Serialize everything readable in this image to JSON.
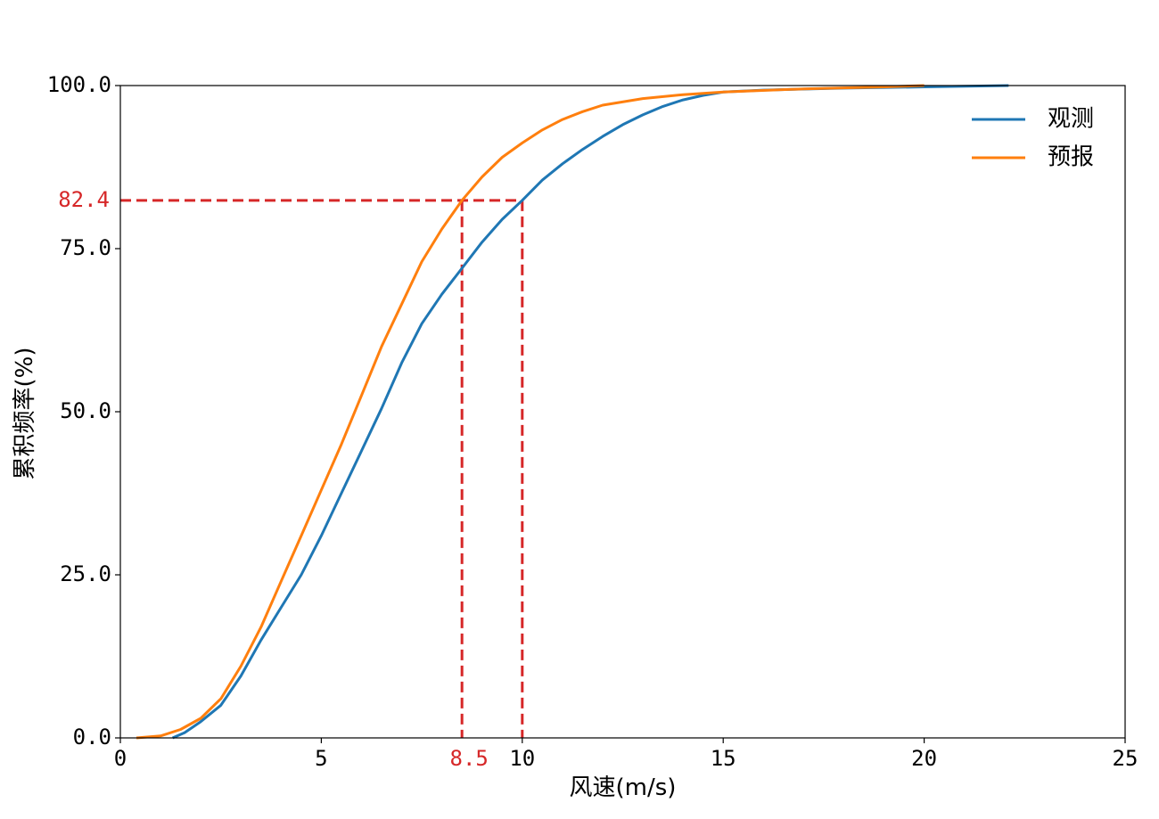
{
  "chart_data": {
    "type": "line",
    "xlabel": "风速(m/s)",
    "ylabel": "累积频率(%)",
    "xlim": [
      0,
      25
    ],
    "ylim": [
      0,
      100
    ],
    "grid": false,
    "legend_position": "top-right",
    "x_ticks": [
      "0",
      "5",
      "10",
      "15",
      "20",
      "25"
    ],
    "y_ticks": [
      "0.0",
      "25.0",
      "50.0",
      "75.0",
      "100.0"
    ],
    "series": [
      {
        "name": "观测",
        "color": "#1f77b4",
        "points": [
          [
            1.3,
            0
          ],
          [
            1.6,
            0.8
          ],
          [
            2.0,
            2.5
          ],
          [
            2.5,
            5
          ],
          [
            3.0,
            9.5
          ],
          [
            3.5,
            15
          ],
          [
            4.0,
            20
          ],
          [
            4.5,
            25
          ],
          [
            5.0,
            31
          ],
          [
            5.5,
            37.5
          ],
          [
            6.0,
            44
          ],
          [
            6.5,
            50.5
          ],
          [
            7.0,
            57.5
          ],
          [
            7.5,
            63.5
          ],
          [
            8.0,
            68
          ],
          [
            8.5,
            72
          ],
          [
            9.0,
            76
          ],
          [
            9.5,
            79.5
          ],
          [
            10.0,
            82.4
          ],
          [
            10.5,
            85.5
          ],
          [
            11.0,
            88
          ],
          [
            11.5,
            90.2
          ],
          [
            12.0,
            92.2
          ],
          [
            12.5,
            94
          ],
          [
            13.0,
            95.5
          ],
          [
            13.5,
            96.8
          ],
          [
            14.0,
            97.8
          ],
          [
            14.5,
            98.5
          ],
          [
            15.0,
            99
          ],
          [
            16.0,
            99.3
          ],
          [
            18.0,
            99.6
          ],
          [
            20.0,
            99.8
          ],
          [
            22.1,
            100
          ]
        ]
      },
      {
        "name": "预报",
        "color": "#ff7f0e",
        "points": [
          [
            0.4,
            0
          ],
          [
            1.0,
            0.3
          ],
          [
            1.5,
            1.3
          ],
          [
            2.0,
            3
          ],
          [
            2.5,
            6
          ],
          [
            3.0,
            11
          ],
          [
            3.5,
            17
          ],
          [
            4.0,
            24
          ],
          [
            4.5,
            31
          ],
          [
            5.0,
            38
          ],
          [
            5.5,
            45
          ],
          [
            6.0,
            52.5
          ],
          [
            6.5,
            60
          ],
          [
            7.0,
            66.5
          ],
          [
            7.5,
            73
          ],
          [
            8.0,
            78
          ],
          [
            8.5,
            82.4
          ],
          [
            9.0,
            86
          ],
          [
            9.5,
            89
          ],
          [
            10.0,
            91.2
          ],
          [
            10.5,
            93.2
          ],
          [
            11.0,
            94.8
          ],
          [
            11.5,
            96
          ],
          [
            12.0,
            97
          ],
          [
            13.0,
            98
          ],
          [
            14.0,
            98.6
          ],
          [
            15.0,
            99
          ],
          [
            17.0,
            99.5
          ],
          [
            19.0,
            99.8
          ],
          [
            20.0,
            100
          ]
        ]
      }
    ],
    "annotations": {
      "color": "#d62728",
      "y_value": 82.4,
      "y_label": "82.4",
      "x_values": [
        8.5,
        10
      ],
      "x_label": "8.5"
    }
  }
}
